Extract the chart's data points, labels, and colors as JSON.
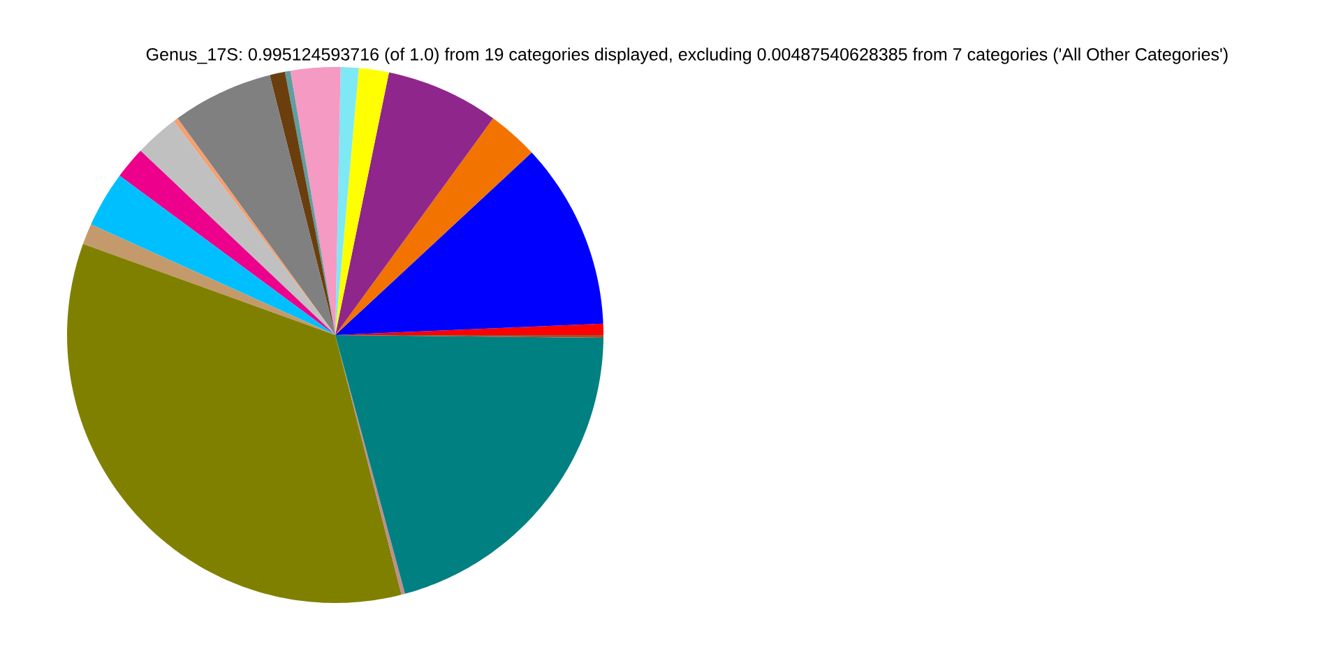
{
  "chart_data": {
    "type": "pie",
    "title": "Genus_17S: 0.995124593716 (of 1.0) from 19 categories displayed, excluding 0.00487540628385 from 7 categories ('All Other Categories')",
    "categories": [
      null,
      null,
      null,
      null,
      null,
      null,
      null,
      null,
      null,
      null,
      null,
      null,
      null,
      null,
      null,
      null,
      null,
      null,
      null
    ],
    "values": [
      0.67,
      11.25,
      3.06,
      6.81,
      1.81,
      1.08,
      3.0,
      0.33,
      0.92,
      6.08,
      0.28,
      2.64,
      1.94,
      3.36,
      1.25,
      34.49,
      0.22,
      20.64,
      0.17
    ],
    "colors": [
      "#ff0000",
      "#0000ff",
      "#f27300",
      "#8f268b",
      "#ffff00",
      "#7ee8f5",
      "#f49ac3",
      "#5f9ea0",
      "#6b3e0d",
      "#808080",
      "#f4a070",
      "#c0c0c0",
      "#ec008c",
      "#00bfff",
      "#c49a6c",
      "#808000",
      "#bc8f8f",
      "#008080",
      "#a0522d"
    ]
  }
}
